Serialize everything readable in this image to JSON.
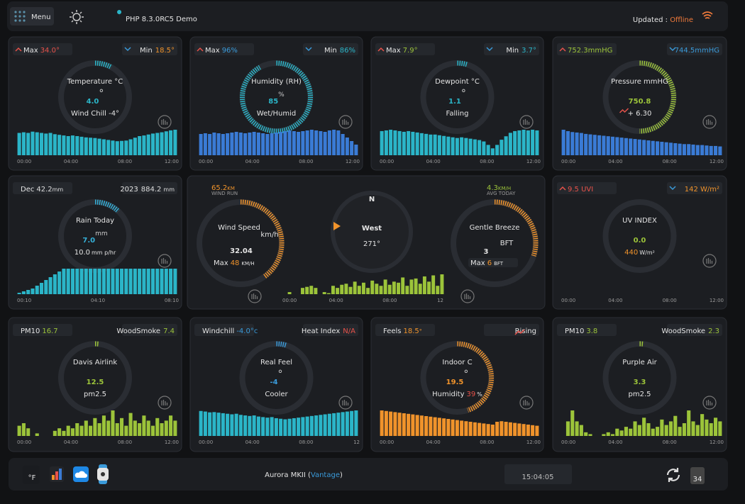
{
  "header": {
    "menu": "Menu",
    "location": "PHP 8.3.0RC5 Demo",
    "updated_label": "Updated :",
    "updated_status": "Offline"
  },
  "cards": [
    {
      "left_label": "Max",
      "left_value": "34.0°",
      "left_color": "#e8524a",
      "right_label": "Min",
      "right_value": "18.5°",
      "right_color": "#f0932b",
      "title": "Temperature °C",
      "value": "4.0",
      "unit": "°",
      "value_color": "#2bb5c8",
      "sub": "Wind Chill -4°",
      "times": [
        "00:00",
        "04:00",
        "08:00",
        "12:00"
      ],
      "color": "#2bb5c8",
      "bars": [
        70,
        72,
        70,
        74,
        72,
        70,
        68,
        70,
        66,
        64,
        62,
        60,
        62,
        60,
        58,
        56,
        55,
        54,
        52,
        50,
        48,
        46,
        44,
        45,
        46,
        50,
        55,
        60,
        62,
        65,
        68,
        70,
        72,
        75,
        78,
        80
      ]
    },
    {
      "left_label": "Max",
      "left_value": "96%",
      "left_color": "#3a9ad9",
      "right_label": "Min",
      "right_value": "86%",
      "right_color": "#2bb5c8",
      "title": "Humidity (RH)",
      "value": "85",
      "unit": "%",
      "value_color": "#2bb5c8",
      "sub": "Wet/Humid",
      "times": [
        "00:00",
        "04:00",
        "08:00",
        "12:00"
      ],
      "color": "#3a7bd5",
      "bars": [
        60,
        62,
        60,
        64,
        62,
        60,
        62,
        64,
        66,
        64,
        62,
        64,
        66,
        64,
        62,
        60,
        62,
        64,
        66,
        68,
        70,
        68,
        66,
        68,
        70,
        72,
        70,
        68,
        66,
        70,
        72,
        70,
        60,
        50,
        40,
        30
      ]
    },
    {
      "left_label": "Max",
      "left_value": "7.9°",
      "left_color": "#9cc43a",
      "right_label": "Min",
      "right_value": "3.7°",
      "right_color": "#2bb5c8",
      "title": "Dewpoint °C",
      "value": "1.1",
      "unit": "°",
      "value_color": "#2bb5c8",
      "sub": "Falling",
      "times": [
        "00:00",
        "04:00",
        "08:00",
        "12:00"
      ],
      "color": "#2bb5c8",
      "bars": [
        70,
        72,
        74,
        72,
        70,
        68,
        70,
        68,
        66,
        64,
        62,
        60,
        60,
        58,
        56,
        54,
        52,
        50,
        52,
        50,
        48,
        46,
        44,
        40,
        30,
        20,
        30,
        45,
        55,
        65,
        70,
        72,
        74,
        72,
        74,
        72
      ]
    },
    {
      "left_value": "752.3mmHG",
      "left_color": "#9cc43a",
      "right_value": "744.5mmHG",
      "right_color": "#3a9ad9",
      "title": "Pressure mmHG",
      "value": "750.8",
      "value_color": "#9cc43a",
      "sub": "+ 6.30",
      "times": [
        "00:00",
        "04:00",
        "08:00",
        "12:00"
      ],
      "color": "#3a7bd5",
      "bars": [
        55,
        52,
        50,
        49,
        48,
        46,
        45,
        44,
        43,
        42,
        41,
        40,
        39,
        38,
        37,
        36,
        35,
        34,
        33,
        32,
        31,
        30,
        29,
        28,
        27,
        26,
        25,
        24,
        24,
        23,
        22,
        22,
        21,
        20,
        20,
        19
      ]
    },
    {
      "left_label": "Dec",
      "left_value": "42.2",
      "left_unit": "mm",
      "left_color": "#dddddd",
      "right_label": "2023",
      "right_value": "884.2",
      "right_unit": "mm",
      "right_color": "#dddddd",
      "title": "Rain Today",
      "value": "7.0",
      "unit": "mm",
      "value_color": "#35b0d8",
      "sub": "10.0",
      "sub_unit": "mm p/hr",
      "times": [
        "00:10",
        "04:10",
        "08:10"
      ],
      "color": "#2bb5c8",
      "bars": [
        5,
        10,
        15,
        20,
        30,
        40,
        50,
        60,
        70,
        80,
        90,
        90,
        90,
        90,
        90,
        90,
        90,
        90,
        90,
        90,
        90,
        90,
        90,
        90,
        90,
        90,
        90,
        90,
        90,
        90,
        90,
        90,
        90,
        90,
        90,
        90
      ]
    },
    {
      "left_value": "9.5 UVI",
      "left_color": "#e8524a",
      "right_value": "142 W/m²",
      "right_color": "#f0932b",
      "title": "UV INDEX",
      "value": "0.0",
      "value_color": "#9cc43a",
      "sub_value": "440",
      "sub_color": "#f0932b",
      "sub_unit": "W/m²",
      "times": [
        "00:00",
        "04:00",
        "08:00",
        "12:00"
      ],
      "color": "#9cc43a"
    },
    {
      "left_label": "PM10",
      "left_value": "16.7",
      "left_color": "#9cc43a",
      "right_label": "WoodSmoke",
      "right_value": "7.4",
      "right_color": "#9cc43a",
      "title": "Davis Airlink",
      "value": "12.5",
      "value_color": "#9cc43a",
      "sub": "pm2.5",
      "times": [
        "00:00",
        "04:00",
        "08:00",
        "12:00"
      ],
      "color": "#9cc43a",
      "bars": [
        20,
        25,
        15,
        0,
        5,
        0,
        0,
        0,
        10,
        15,
        10,
        20,
        15,
        25,
        20,
        30,
        20,
        35,
        25,
        40,
        30,
        50,
        25,
        35,
        20,
        45,
        30,
        25,
        40,
        30,
        20,
        35,
        25,
        30,
        40,
        30
      ]
    },
    {
      "left_label": "Windchill",
      "left_value": "-4.0°c",
      "left_color": "#3a9ad9",
      "right_label": "Heat Index",
      "right_value": "N/A",
      "right_color": "#e8524a",
      "title": "Real Feel",
      "value": "-4",
      "unit": "°",
      "value_color": "#3a9ad9",
      "sub": "Cooler",
      "times": [
        "00:00",
        "04:00",
        "08:00",
        "12"
      ],
      "color": "#2bb5c8",
      "bars": [
        90,
        88,
        85,
        86,
        84,
        82,
        80,
        78,
        80,
        76,
        74,
        72,
        74,
        70,
        68,
        66,
        68,
        64,
        62,
        60,
        62,
        64,
        66,
        68,
        70,
        72,
        74,
        76,
        78,
        80,
        82,
        84,
        86,
        88,
        90,
        92
      ]
    },
    {
      "left_label": "Feels",
      "left_value": "18.5",
      "left_unit": "°",
      "left_color": "#f0932b",
      "right_label": "Rising",
      "title": "Indoor C",
      "value": "19.5",
      "unit": "°",
      "value_color": "#f0932b",
      "sub": "Humidity",
      "sub_value": "39",
      "sub_color": "#e8524a",
      "sub_unit": "%",
      "times": [
        "00:00",
        "04:00",
        "08:00",
        "12:00"
      ],
      "color": "#f0932b",
      "bars": [
        90,
        88,
        86,
        84,
        82,
        80,
        78,
        76,
        74,
        72,
        70,
        68,
        66,
        64,
        62,
        60,
        58,
        56,
        54,
        52,
        50,
        48,
        46,
        44,
        42,
        40,
        50,
        52,
        50,
        48,
        46,
        44,
        42,
        40,
        38,
        36
      ]
    },
    {
      "left_label": "PM10",
      "left_value": "3.8",
      "left_color": "#9cc43a",
      "right_label": "WoodSmoke",
      "right_value": "2.3",
      "right_color": "#9cc43a",
      "title": "Purple Air",
      "value": "3.3",
      "value_color": "#9cc43a",
      "sub": "pm2.5",
      "times": [
        "00:00",
        "04:00",
        "08:00",
        "12:00"
      ],
      "color": "#9cc43a",
      "bars": [
        0,
        40,
        70,
        40,
        30,
        10,
        5,
        0,
        0,
        5,
        10,
        5,
        20,
        15,
        25,
        20,
        40,
        30,
        50,
        35,
        20,
        25,
        45,
        30,
        40,
        55,
        25,
        35,
        70,
        40,
        30,
        60,
        45,
        35,
        50,
        40
      ]
    }
  ],
  "wind": {
    "run_value": "65.2",
    "run_unit": "KM",
    "run_label": "WIND RUN",
    "speed_title": "Wind Speed",
    "speed_unit": "km/h",
    "speed_value": "32.04",
    "max_label": "Max",
    "max_value": "48",
    "max_unit": "KM/H",
    "compass_north": "N",
    "direction": "West",
    "degrees": "271°",
    "avg_value": "4.3",
    "avg_unit": "KM/H",
    "avg_label": "AVG TODAY",
    "beaufort_title": "Gentle Breeze",
    "beaufort_value": "3",
    "beaufort_unit": "BFT",
    "beaufort_max_label": "Max",
    "beaufort_max_value": "6",
    "beaufort_max_unit": "BFT",
    "times": [
      "00:00",
      "04:00",
      "08:00",
      "12"
    ],
    "color": "#9cc43a",
    "bars": [
      10,
      0,
      0,
      30,
      35,
      40,
      30,
      0,
      10,
      5,
      40,
      30,
      45,
      50,
      35,
      60,
      40,
      55,
      30,
      65,
      50,
      40,
      70,
      45,
      60,
      55,
      80,
      40,
      70,
      75,
      50,
      85,
      60,
      90,
      40,
      95
    ]
  },
  "footer": {
    "units": "°F",
    "station": "Aurora MKII (",
    "station_model": "Vantage",
    "station_end": ")",
    "clock": "15:04:05",
    "calendar": "34"
  }
}
